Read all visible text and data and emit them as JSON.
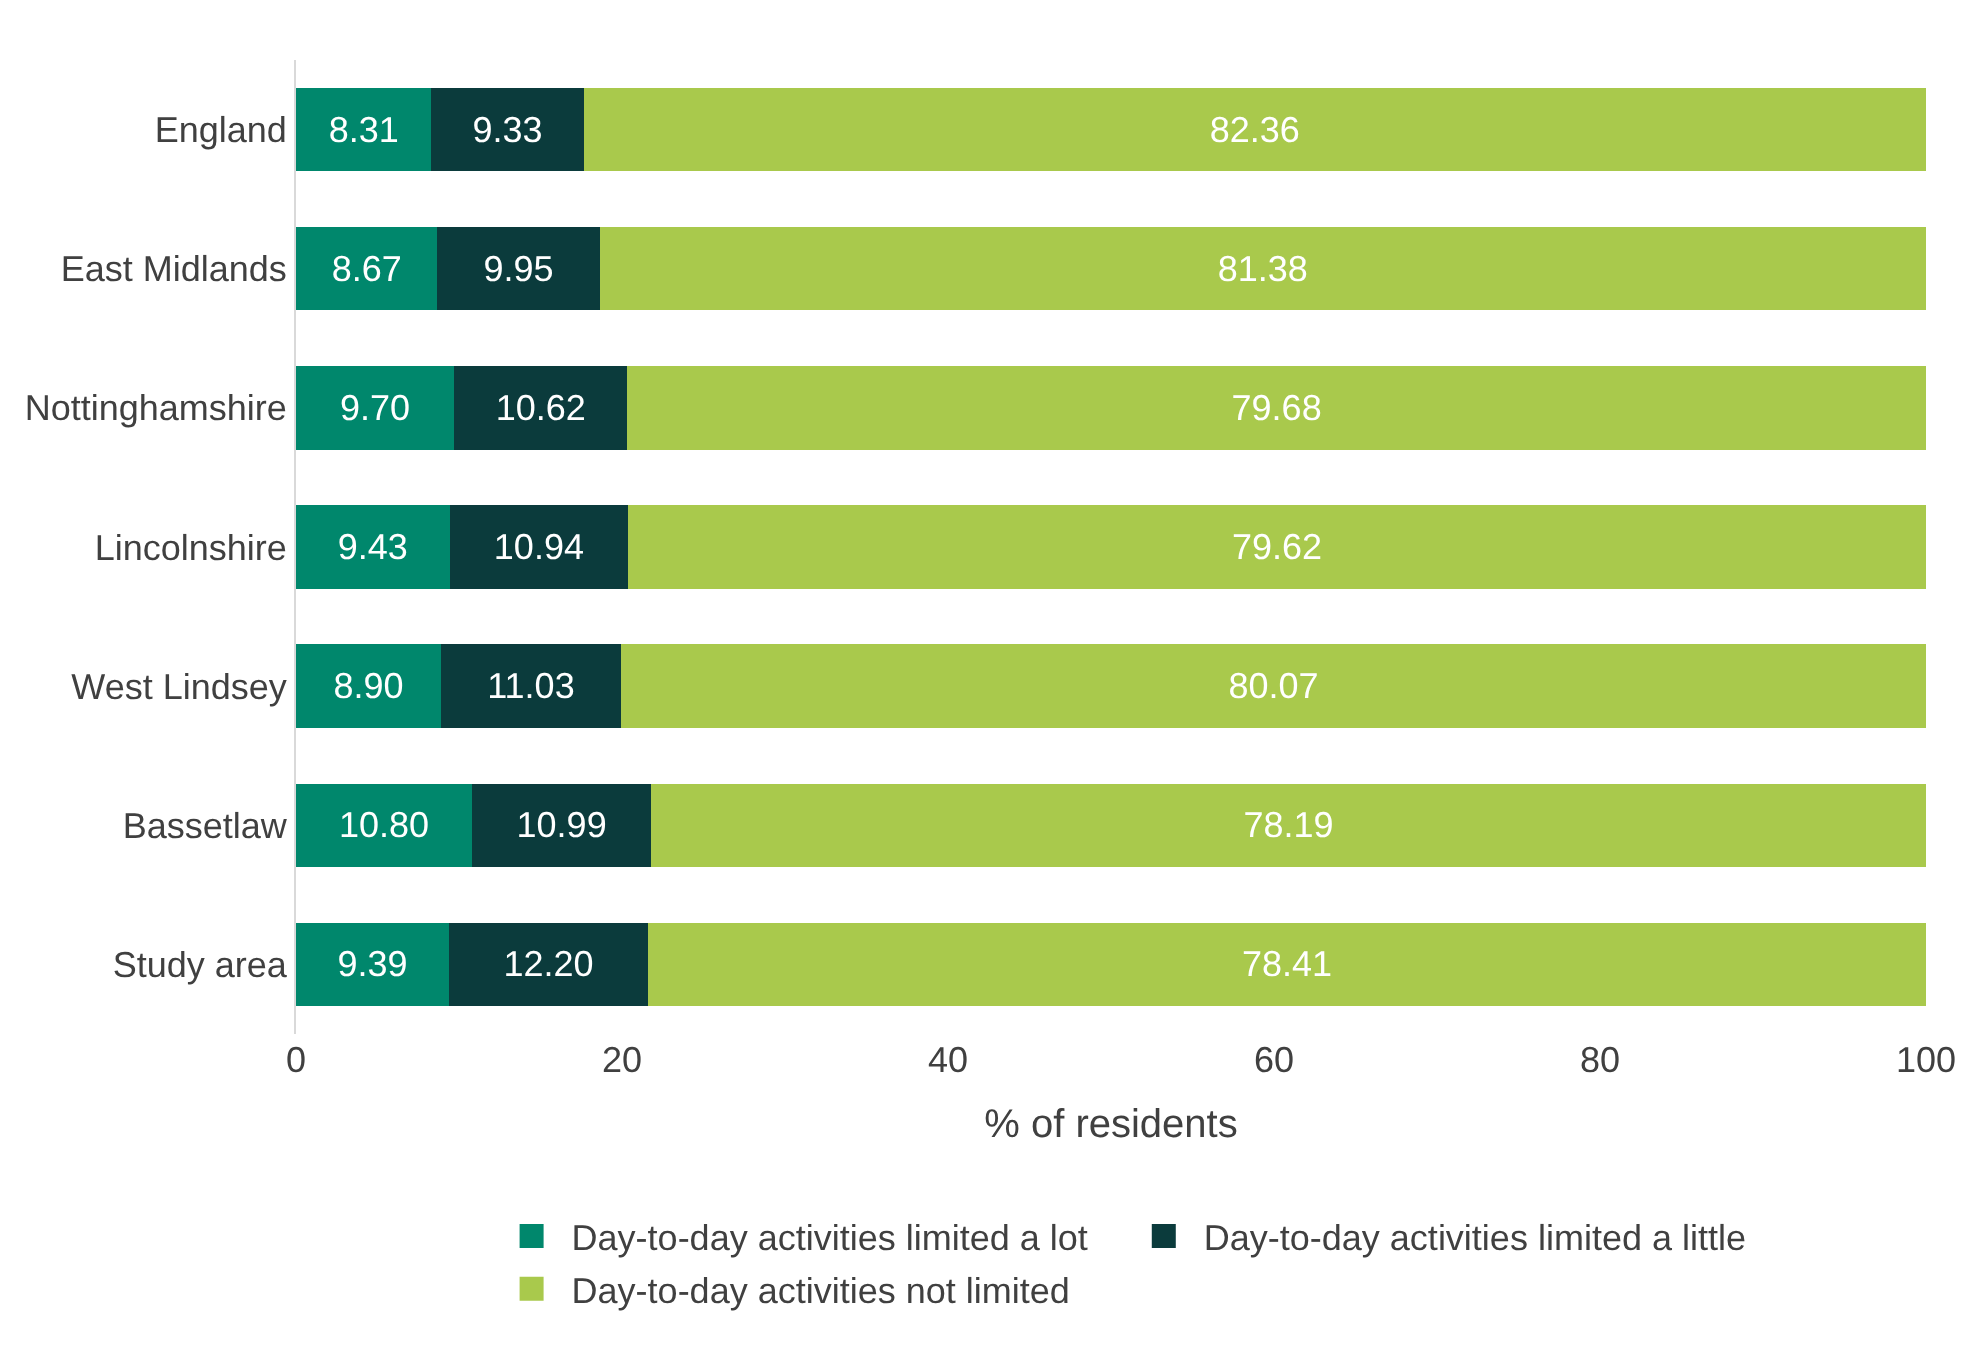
{
  "chart_data": {
    "type": "bar",
    "orientation": "horizontal",
    "stacked": true,
    "xlabel": "% of residents",
    "categories": [
      "England",
      "East Midlands",
      "Nottinghamshire",
      "Lincolnshire",
      "West Lindsey",
      "Bassetlaw",
      "Study area"
    ],
    "series": [
      {
        "name": "Day-to-day activities limited a lot",
        "color": "#00876c",
        "values": [
          8.31,
          8.67,
          9.7,
          9.43,
          8.9,
          10.8,
          9.39
        ],
        "value_labels": [
          "8.31",
          "8.67",
          "9.70",
          "9.43",
          "8.90",
          "10.80",
          "9.39"
        ]
      },
      {
        "name": "Day-to-day activities limited a little",
        "color": "#0b3b3c",
        "values": [
          9.33,
          9.95,
          10.62,
          10.94,
          11.03,
          10.99,
          12.2
        ],
        "value_labels": [
          "9.33",
          "9.95",
          "10.62",
          "10.94",
          "11.03",
          "10.99",
          "12.20"
        ]
      },
      {
        "name": "Day-to-day activities not limited",
        "color": "#a9c94c",
        "values": [
          82.36,
          81.38,
          79.68,
          79.62,
          80.07,
          78.19,
          78.41
        ],
        "value_labels": [
          "82.36",
          "81.38",
          "79.68",
          "79.62",
          "80.07",
          "78.19",
          "78.41"
        ]
      }
    ],
    "xlim": [
      0,
      100
    ],
    "xticks": [
      0,
      20,
      40,
      60,
      80,
      100
    ],
    "legend": "bottom"
  }
}
